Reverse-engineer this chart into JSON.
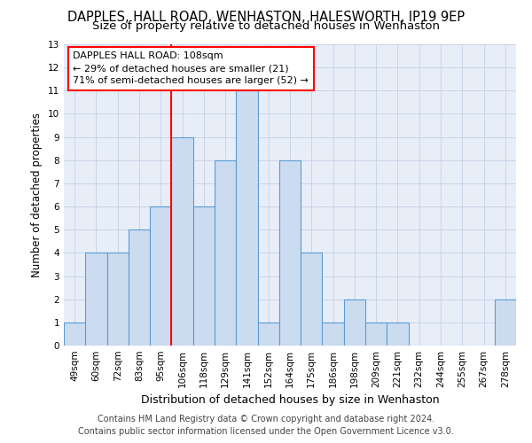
{
  "title": "DAPPLES, HALL ROAD, WENHASTON, HALESWORTH, IP19 9EP",
  "subtitle": "Size of property relative to detached houses in Wenhaston",
  "xlabel": "Distribution of detached houses by size in Wenhaston",
  "ylabel": "Number of detached properties",
  "footer_line1": "Contains HM Land Registry data © Crown copyright and database right 2024.",
  "footer_line2": "Contains public sector information licensed under the Open Government Licence v3.0.",
  "categories": [
    "49sqm",
    "60sqm",
    "72sqm",
    "83sqm",
    "95sqm",
    "106sqm",
    "118sqm",
    "129sqm",
    "141sqm",
    "152sqm",
    "164sqm",
    "175sqm",
    "186sqm",
    "198sqm",
    "209sqm",
    "221sqm",
    "232sqm",
    "244sqm",
    "255sqm",
    "267sqm",
    "278sqm"
  ],
  "values": [
    1,
    4,
    4,
    5,
    6,
    9,
    6,
    8,
    11,
    1,
    8,
    4,
    1,
    2,
    1,
    1,
    0,
    0,
    0,
    0,
    2
  ],
  "bar_color": "#ccdcf0",
  "bar_edge_color": "#5b9bd5",
  "reference_line_index": 5,
  "reference_label": "DAPPLES HALL ROAD: 108sqm",
  "annotation_line1": "← 29% of detached houses are smaller (21)",
  "annotation_line2": "71% of semi-detached houses are larger (52) →",
  "ylim": [
    0,
    13
  ],
  "yticks": [
    0,
    1,
    2,
    3,
    4,
    5,
    6,
    7,
    8,
    9,
    10,
    11,
    12,
    13
  ],
  "grid_color": "#c8d4e8",
  "bg_color": "#e8eef8",
  "title_fontsize": 10.5,
  "subtitle_fontsize": 9.5,
  "xlabel_fontsize": 9,
  "ylabel_fontsize": 8.5,
  "tick_fontsize": 7.5,
  "annotation_fontsize": 8,
  "footer_fontsize": 7
}
